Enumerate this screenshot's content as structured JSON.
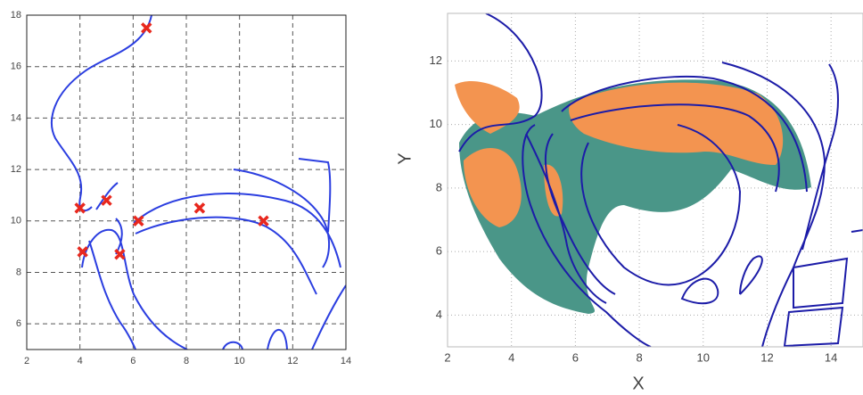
{
  "chart_data": [
    {
      "type": "scatter",
      "x": [
        6.5,
        4,
        5,
        6.2,
        8.5,
        10.9,
        4.1,
        5.5
      ],
      "values": [
        17.5,
        10.5,
        10.8,
        10,
        10.5,
        10,
        8.8,
        8.7
      ],
      "color": "#e8281e",
      "xlim": [
        2,
        14
      ],
      "ylim": [
        5,
        18
      ],
      "xticks": [
        2,
        4,
        6,
        8,
        10,
        12,
        14
      ],
      "yticks": [
        6,
        8,
        10,
        12,
        14,
        16,
        18
      ],
      "grid": "dashed"
    },
    {
      "type": "area",
      "xlabel": "X",
      "ylabel": "Y",
      "xlim": [
        2,
        15
      ],
      "ylim": [
        3,
        13.5
      ],
      "xticks": [
        2,
        4,
        6,
        8,
        10,
        12,
        14
      ],
      "yticks": [
        4,
        6,
        8,
        10,
        12
      ],
      "grid": "dotted"
    }
  ]
}
